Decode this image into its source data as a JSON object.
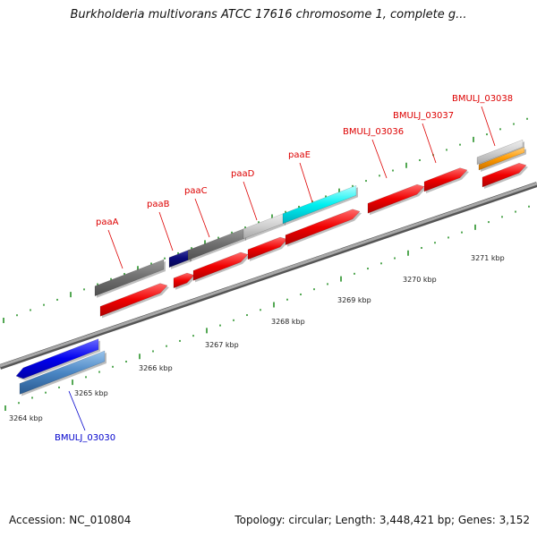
{
  "title": "Burkholderia multivorans ATCC 17616 chromosome 1, complete g...",
  "footer": {
    "accession": "Accession: NC_010804",
    "topology": "Topology: circular; Length: 3,448,421 bp; Genes: 3,152"
  },
  "colors": {
    "backbone": "#8a8a8a",
    "tick": "#1a8a1a",
    "label_top": "#dd0000",
    "label_bottom": "#0000cc"
  },
  "scale_ticks": [
    {
      "label": "3264 kbp"
    },
    {
      "label": "3265 kbp"
    },
    {
      "label": "3266 kbp"
    },
    {
      "label": "3267 kbp"
    },
    {
      "label": "3268 kbp"
    },
    {
      "label": "3269 kbp"
    },
    {
      "label": "3270 kbp"
    },
    {
      "label": "3271 kbp"
    }
  ],
  "gene_labels": [
    {
      "name": "paaA",
      "color": "#dd0000"
    },
    {
      "name": "paaB",
      "color": "#dd0000"
    },
    {
      "name": "paaC",
      "color": "#dd0000"
    },
    {
      "name": "paaD",
      "color": "#dd0000"
    },
    {
      "name": "paaE",
      "color": "#dd0000"
    },
    {
      "name": "BMULJ_03036",
      "color": "#dd0000"
    },
    {
      "name": "BMULJ_03037",
      "color": "#dd0000"
    },
    {
      "name": "BMULJ_03038",
      "color": "#dd0000"
    },
    {
      "name": "BMULJ_03030",
      "color": "#0000cc"
    }
  ]
}
